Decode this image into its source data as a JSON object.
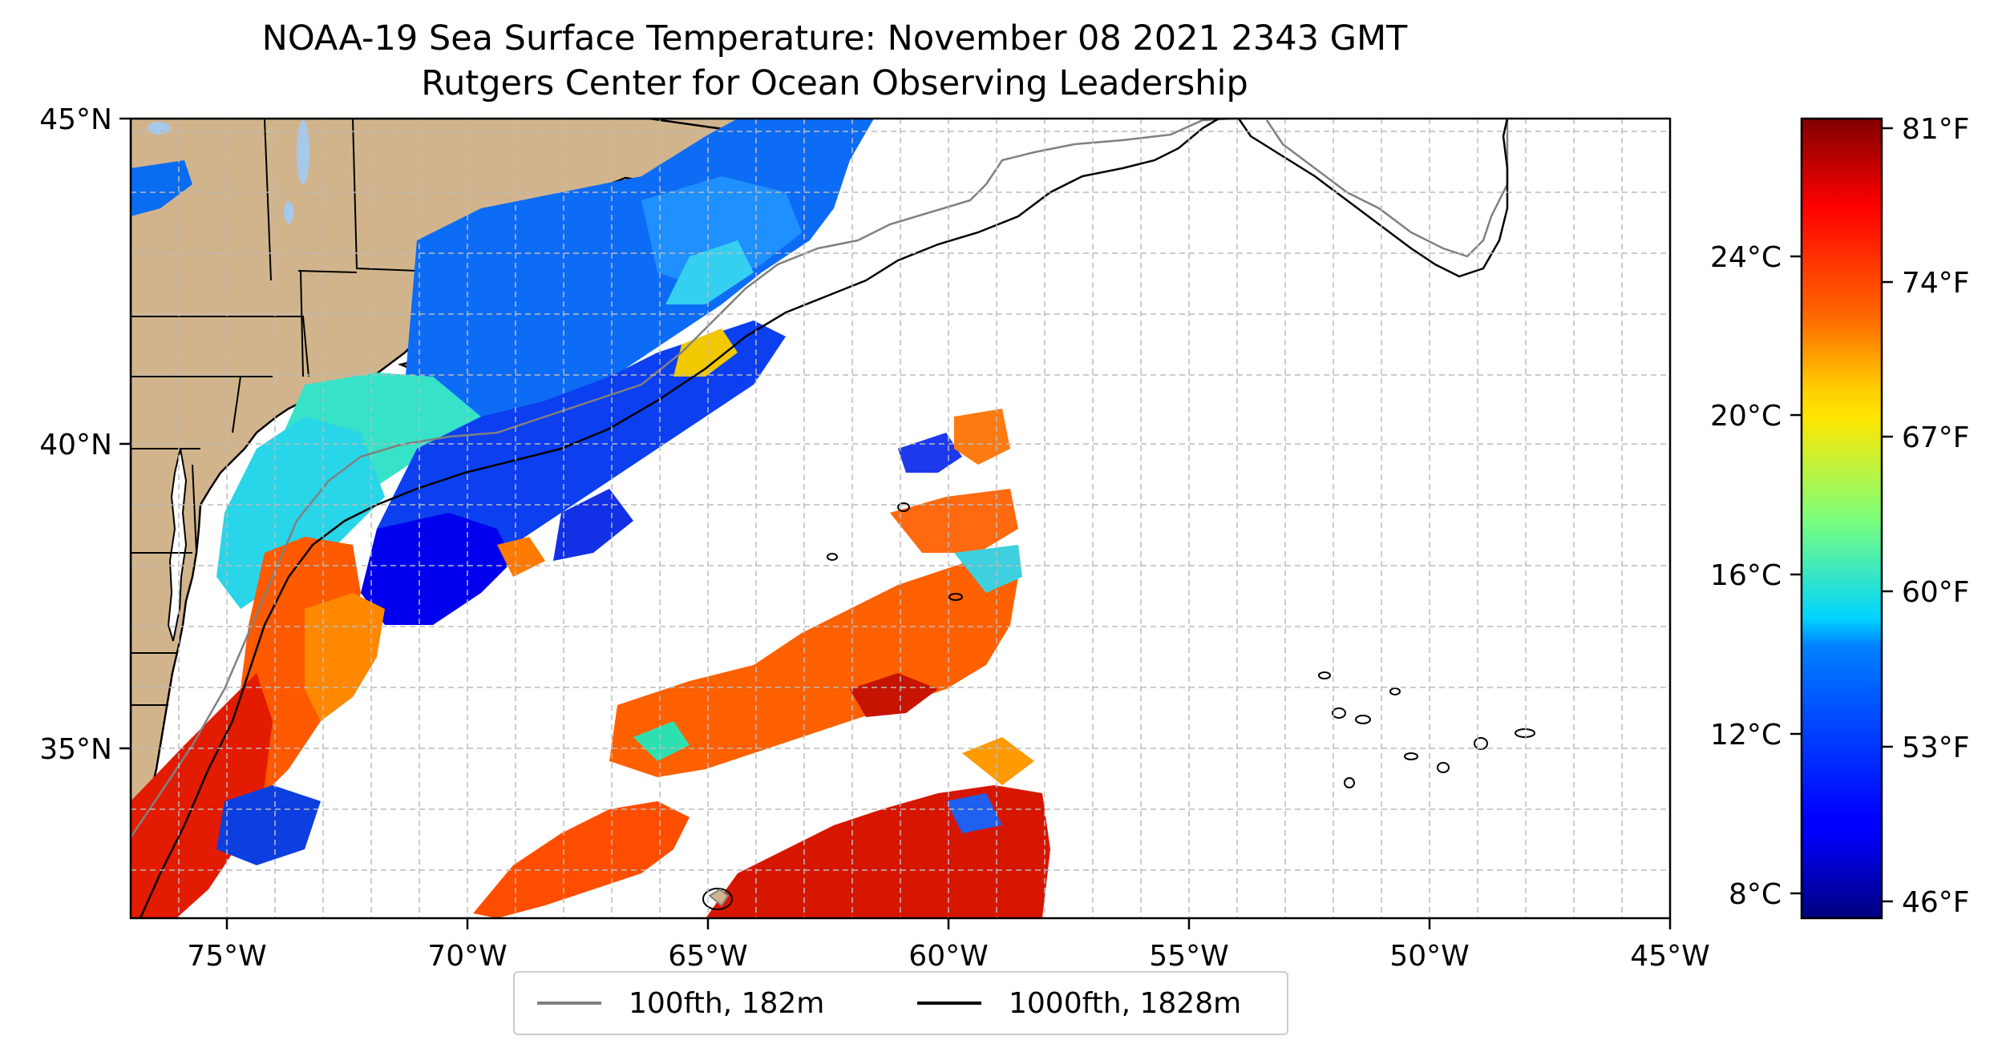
{
  "title": "NOAA-19 Sea Surface Temperature: November 08 2021 2343 GMT",
  "subtitle": "Rutgers Center for Ocean Observing Leadership",
  "colors": {
    "land": "#d2b48c",
    "lakes": "#a6c8ea",
    "coast": "#000000",
    "iso100": "#808080",
    "iso1000": "#000000",
    "grid": "#bbbbbb"
  },
  "map": {
    "lon_range": [
      -77,
      -45
    ],
    "lat_range": [
      32.5,
      45
    ],
    "lon_ticks": [
      "75°W",
      "70°W",
      "65°W",
      "60°W",
      "55°W",
      "50°W",
      "45°W"
    ],
    "lat_ticks": [
      "45°N",
      "40°N",
      "35°N"
    ],
    "gridlines": true
  },
  "colorbar": {
    "colormap": "jet",
    "range_f": [
      46,
      81
    ],
    "range_c": [
      7.5,
      27.5
    ],
    "celsius_ticks": [
      "24°C",
      "20°C",
      "16°C",
      "12°C",
      "8°C"
    ],
    "fahrenheit_ticks": [
      "81°F",
      "74°F",
      "67°F",
      "60°F",
      "53°F",
      "46°F"
    ]
  },
  "legend": {
    "items": [
      {
        "label": "100fth, 182m",
        "color": "#808080"
      },
      {
        "label": "1000fth, 1828m",
        "color": "#000000"
      }
    ]
  }
}
